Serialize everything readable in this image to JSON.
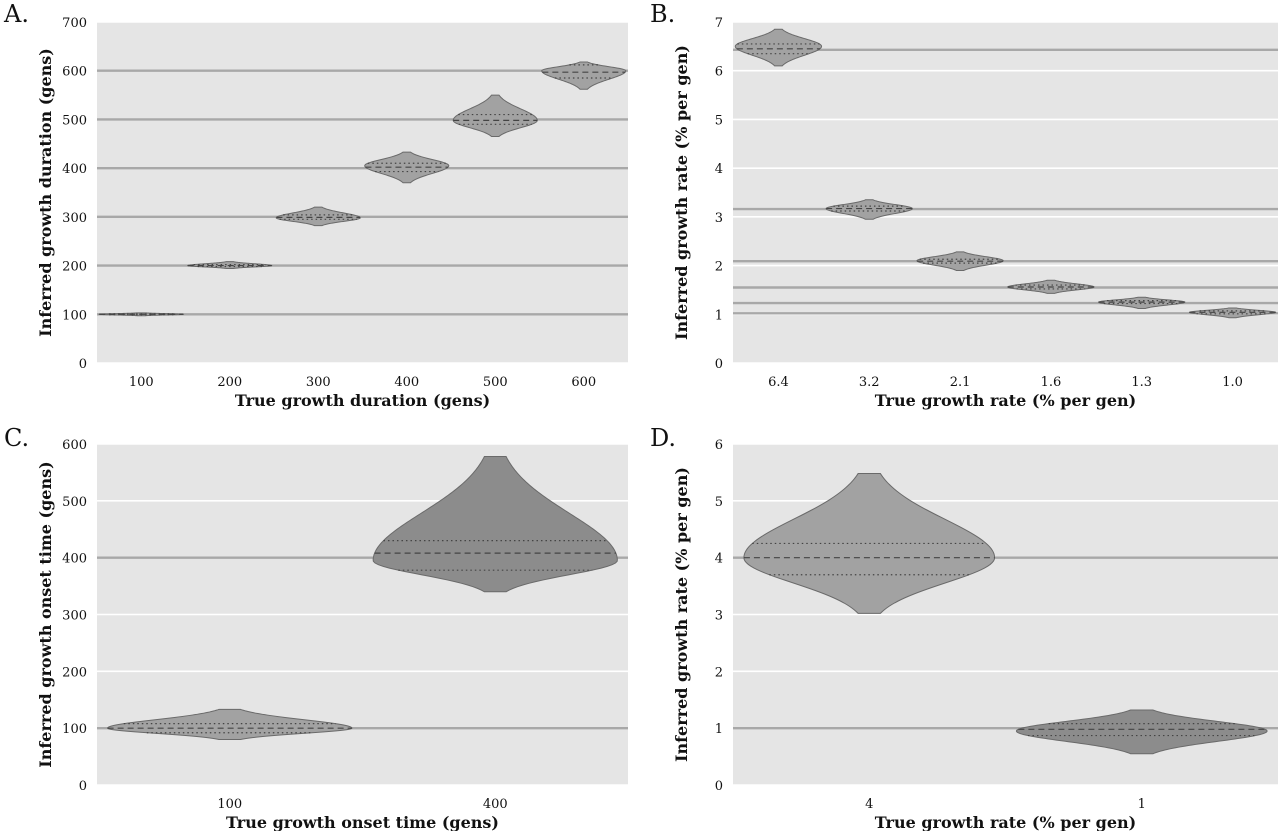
{
  "chart_data": [
    {
      "type": "violin",
      "panel_label": "A.",
      "xlabel": "True growth duration (gens)",
      "ylabel": "Inferred growth duration (gens)",
      "categories": [
        "100",
        "200",
        "300",
        "400",
        "500",
        "600"
      ],
      "ylim": [
        0,
        700
      ],
      "yticks": [
        0,
        100,
        200,
        300,
        400,
        500,
        600,
        700
      ],
      "ytick_labels": [
        "0",
        "100",
        "200",
        "300",
        "400",
        "500",
        "600",
        "700"
      ],
      "grid": true,
      "reference_lines": [
        100,
        200,
        300,
        400,
        500,
        600
      ],
      "violins": [
        {
          "min": 97,
          "q1": 99,
          "median": 100,
          "q3": 101,
          "max": 103,
          "mode": 100,
          "fill": "#a2a2a2"
        },
        {
          "min": 194,
          "q1": 198,
          "median": 200,
          "q3": 202,
          "max": 208,
          "mode": 200,
          "fill": "#a2a2a2"
        },
        {
          "min": 282,
          "q1": 295,
          "median": 299,
          "q3": 304,
          "max": 320,
          "mode": 298,
          "fill": "#a2a2a2"
        },
        {
          "min": 370,
          "q1": 393,
          "median": 402,
          "q3": 410,
          "max": 433,
          "mode": 405,
          "fill": "#a2a2a2"
        },
        {
          "min": 465,
          "q1": 490,
          "median": 498,
          "q3": 510,
          "max": 550,
          "mode": 498,
          "fill": "#a2a2a2"
        },
        {
          "min": 562,
          "q1": 585,
          "median": 597,
          "q3": 612,
          "max": 618,
          "mode": 600,
          "fill": "#a2a2a2"
        }
      ]
    },
    {
      "type": "violin",
      "panel_label": "B.",
      "xlabel": "True growth rate (% per gen)",
      "ylabel": "Inferred growth rate (% per gen)",
      "categories": [
        "6.4",
        "3.2",
        "2.1",
        "1.6",
        "1.3",
        "1.0"
      ],
      "ylim": [
        0,
        7
      ],
      "yticks": [
        0,
        1,
        2,
        3,
        4,
        5,
        6,
        7
      ],
      "ytick_labels": [
        "0",
        "1",
        "2",
        "3",
        "4",
        "5",
        "6",
        "7"
      ],
      "grid": true,
      "reference_lines": [
        6.43,
        3.16,
        2.09,
        1.55,
        1.23,
        1.02
      ],
      "violins": [
        {
          "min": 6.1,
          "q1": 6.35,
          "median": 6.45,
          "q3": 6.55,
          "max": 6.85,
          "mode": 6.5,
          "fill": "#a2a2a2"
        },
        {
          "min": 2.95,
          "q1": 3.12,
          "median": 3.17,
          "q3": 3.22,
          "max": 3.35,
          "mode": 3.17,
          "fill": "#a2a2a2"
        },
        {
          "min": 1.9,
          "q1": 2.05,
          "median": 2.09,
          "q3": 2.13,
          "max": 2.28,
          "mode": 2.1,
          "fill": "#a2a2a2"
        },
        {
          "min": 1.43,
          "q1": 1.52,
          "median": 1.56,
          "q3": 1.6,
          "max": 1.7,
          "mode": 1.56,
          "fill": "#a2a2a2"
        },
        {
          "min": 1.12,
          "q1": 1.22,
          "median": 1.25,
          "q3": 1.28,
          "max": 1.35,
          "mode": 1.25,
          "fill": "#a2a2a2"
        },
        {
          "min": 0.93,
          "q1": 1.01,
          "median": 1.04,
          "q3": 1.07,
          "max": 1.13,
          "mode": 1.04,
          "fill": "#a2a2a2"
        }
      ]
    },
    {
      "type": "violin",
      "panel_label": "C.",
      "xlabel": "True growth onset time (gens)",
      "ylabel": "Inferred growth onset time (gens)",
      "categories": [
        "100",
        "400"
      ],
      "ylim": [
        0,
        600
      ],
      "yticks": [
        0,
        100,
        200,
        300,
        400,
        500,
        600
      ],
      "ytick_labels": [
        "0",
        "100",
        "200",
        "300",
        "400",
        "500",
        "600"
      ],
      "grid": true,
      "reference_lines": [
        100,
        400
      ],
      "violins": [
        {
          "min": 80,
          "q1": 92,
          "median": 100,
          "q3": 108,
          "max": 133,
          "mode": 100,
          "fill": "#a2a2a2"
        },
        {
          "min": 340,
          "q1": 378,
          "median": 408,
          "q3": 430,
          "max": 578,
          "mode": 395,
          "fill": "#8c8c8c"
        }
      ]
    },
    {
      "type": "violin",
      "panel_label": "D.",
      "xlabel": "True growth rate (% per gen)",
      "ylabel": "Inferred growth rate (% per gen)",
      "categories": [
        "4",
        "1"
      ],
      "ylim": [
        0,
        6
      ],
      "yticks": [
        0,
        1,
        2,
        3,
        4,
        5,
        6
      ],
      "ytick_labels": [
        "0",
        "1",
        "2",
        "3",
        "4",
        "5",
        "6"
      ],
      "grid": true,
      "reference_lines": [
        4,
        1
      ],
      "violins": [
        {
          "min": 3.02,
          "q1": 3.7,
          "median": 4.0,
          "q3": 4.25,
          "max": 5.48,
          "mode": 4.0,
          "fill": "#a2a2a2"
        },
        {
          "min": 0.55,
          "q1": 0.87,
          "median": 0.98,
          "q3": 1.08,
          "max": 1.32,
          "mode": 0.95,
          "fill": "#8c8c8c"
        }
      ]
    }
  ]
}
